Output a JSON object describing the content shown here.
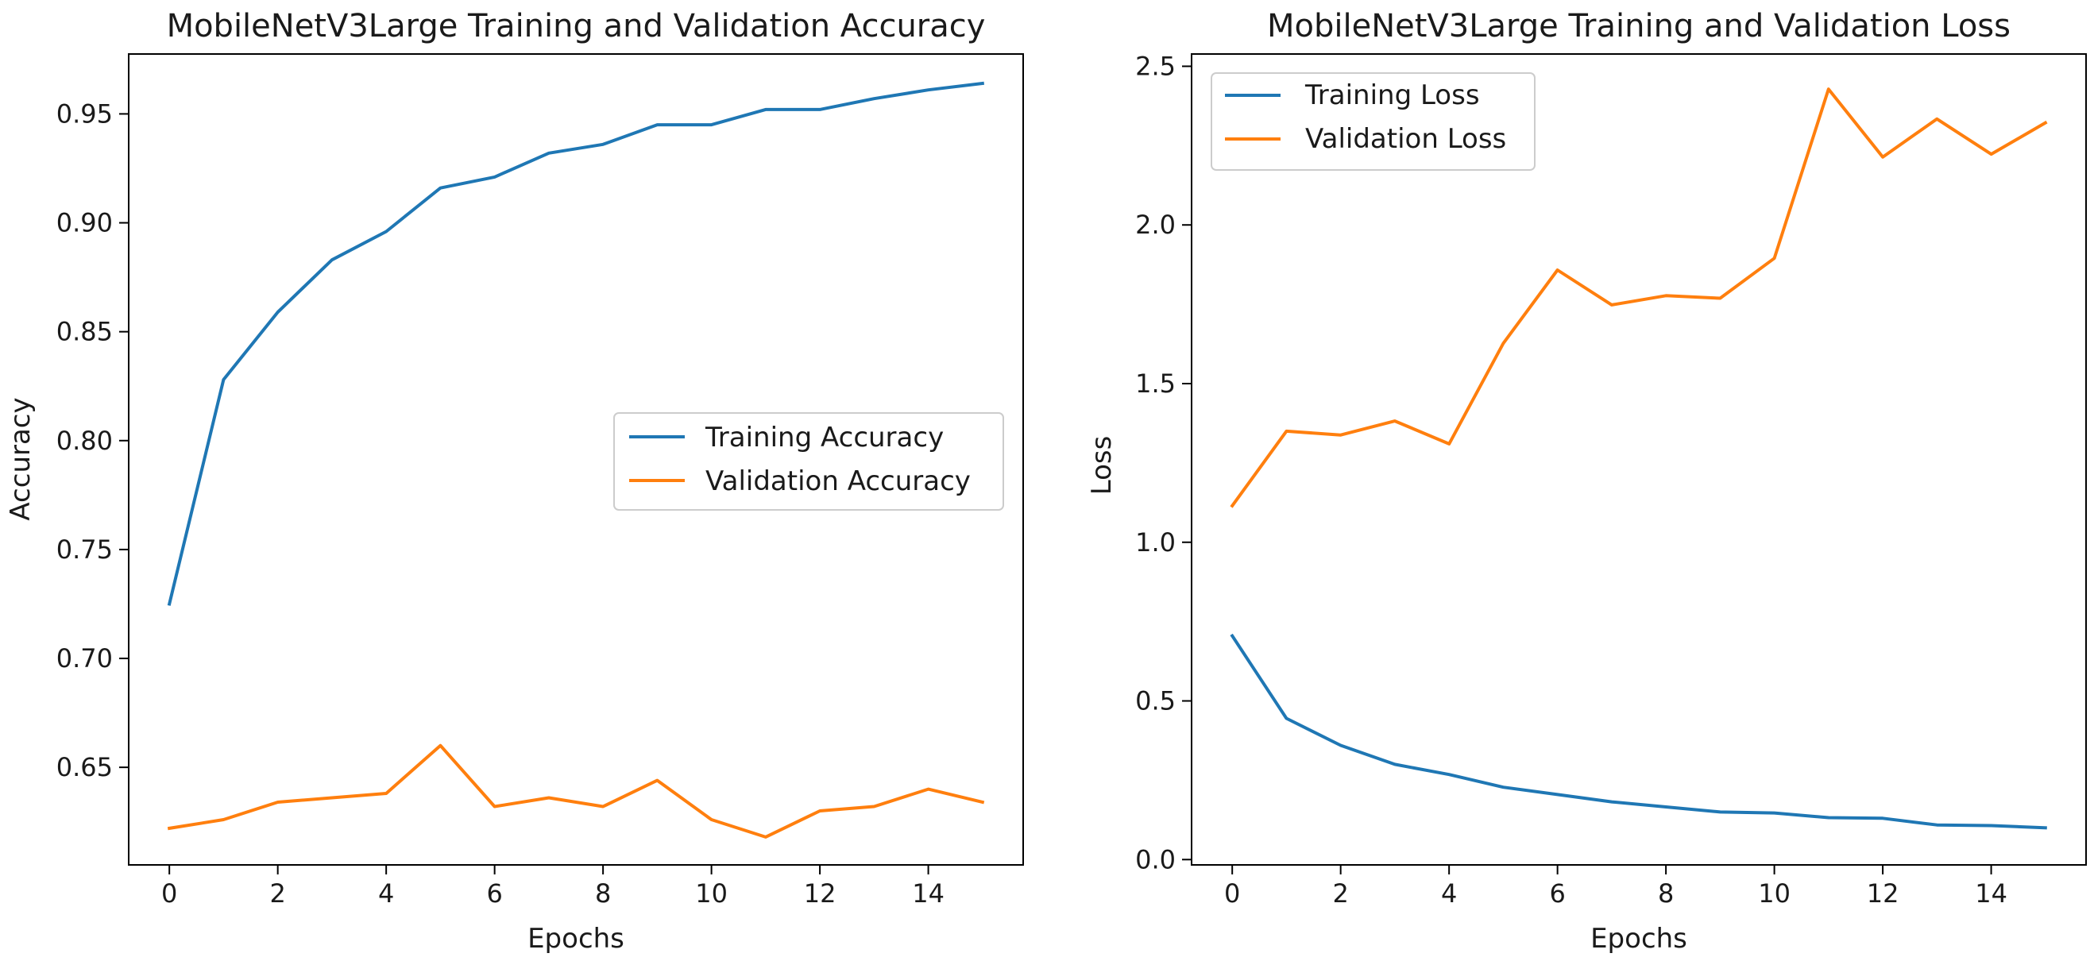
{
  "chart_data": [
    {
      "type": "line",
      "title": "MobileNetV3Large Training and Validation Accuracy",
      "xlabel": "Epochs",
      "ylabel": "Accuracy",
      "x": [
        0,
        1,
        2,
        3,
        4,
        5,
        6,
        7,
        8,
        9,
        10,
        11,
        12,
        13,
        14,
        15
      ],
      "xlim": [
        -0.75,
        15.75
      ],
      "ylim": [
        0.6052,
        0.9775
      ],
      "xticks": [
        0,
        2,
        4,
        6,
        8,
        10,
        12,
        14
      ],
      "xtick_labels": [
        "0",
        "2",
        "4",
        "6",
        "8",
        "10",
        "12",
        "14"
      ],
      "yticks": [
        0.65,
        0.7,
        0.75,
        0.8,
        0.85,
        0.9,
        0.95
      ],
      "ytick_labels": [
        "0.65",
        "0.70",
        "0.75",
        "0.80",
        "0.85",
        "0.90",
        "0.95"
      ],
      "legend_position": "center-right",
      "grid": false,
      "series": [
        {
          "name": "Training Accuracy",
          "color": "#1f77b4",
          "values": [
            0.725,
            0.828,
            0.859,
            0.883,
            0.896,
            0.916,
            0.921,
            0.932,
            0.936,
            0.945,
            0.945,
            0.952,
            0.952,
            0.957,
            0.961,
            0.964
          ]
        },
        {
          "name": "Validation Accuracy",
          "color": "#ff7f0e",
          "values": [
            0.622,
            0.626,
            0.634,
            0.636,
            0.638,
            0.66,
            0.632,
            0.636,
            0.632,
            0.644,
            0.626,
            0.618,
            0.63,
            0.632,
            0.64,
            0.634
          ]
        }
      ]
    },
    {
      "type": "line",
      "title": "MobileNetV3Large Training and Validation Loss",
      "xlabel": "Epochs",
      "ylabel": "Loss",
      "x": [
        0,
        1,
        2,
        3,
        4,
        5,
        6,
        7,
        8,
        9,
        10,
        11,
        12,
        13,
        14,
        15
      ],
      "xlim": [
        -0.75,
        15.75
      ],
      "ylim": [
        -0.0168,
        2.5387
      ],
      "xticks": [
        0,
        2,
        4,
        6,
        8,
        10,
        12,
        14
      ],
      "xtick_labels": [
        "0",
        "2",
        "4",
        "6",
        "8",
        "10",
        "12",
        "14"
      ],
      "yticks": [
        0.0,
        0.5,
        1.0,
        1.5,
        2.0,
        2.5
      ],
      "ytick_labels": [
        "0.0",
        "0.5",
        "1.0",
        "1.5",
        "2.0",
        "2.5"
      ],
      "legend_position": "upper-left",
      "grid": false,
      "series": [
        {
          "name": "Training Loss",
          "color": "#1f77b4",
          "values": [
            0.705,
            0.445,
            0.36,
            0.3,
            0.268,
            0.228,
            0.205,
            0.182,
            0.166,
            0.15,
            0.147,
            0.132,
            0.13,
            0.109,
            0.107,
            0.1
          ]
        },
        {
          "name": "Validation Loss",
          "color": "#ff7f0e",
          "values": [
            1.115,
            1.35,
            1.338,
            1.382,
            1.31,
            1.627,
            1.858,
            1.748,
            1.777,
            1.769,
            1.895,
            2.428,
            2.214,
            2.334,
            2.223,
            2.322
          ]
        }
      ]
    }
  ]
}
